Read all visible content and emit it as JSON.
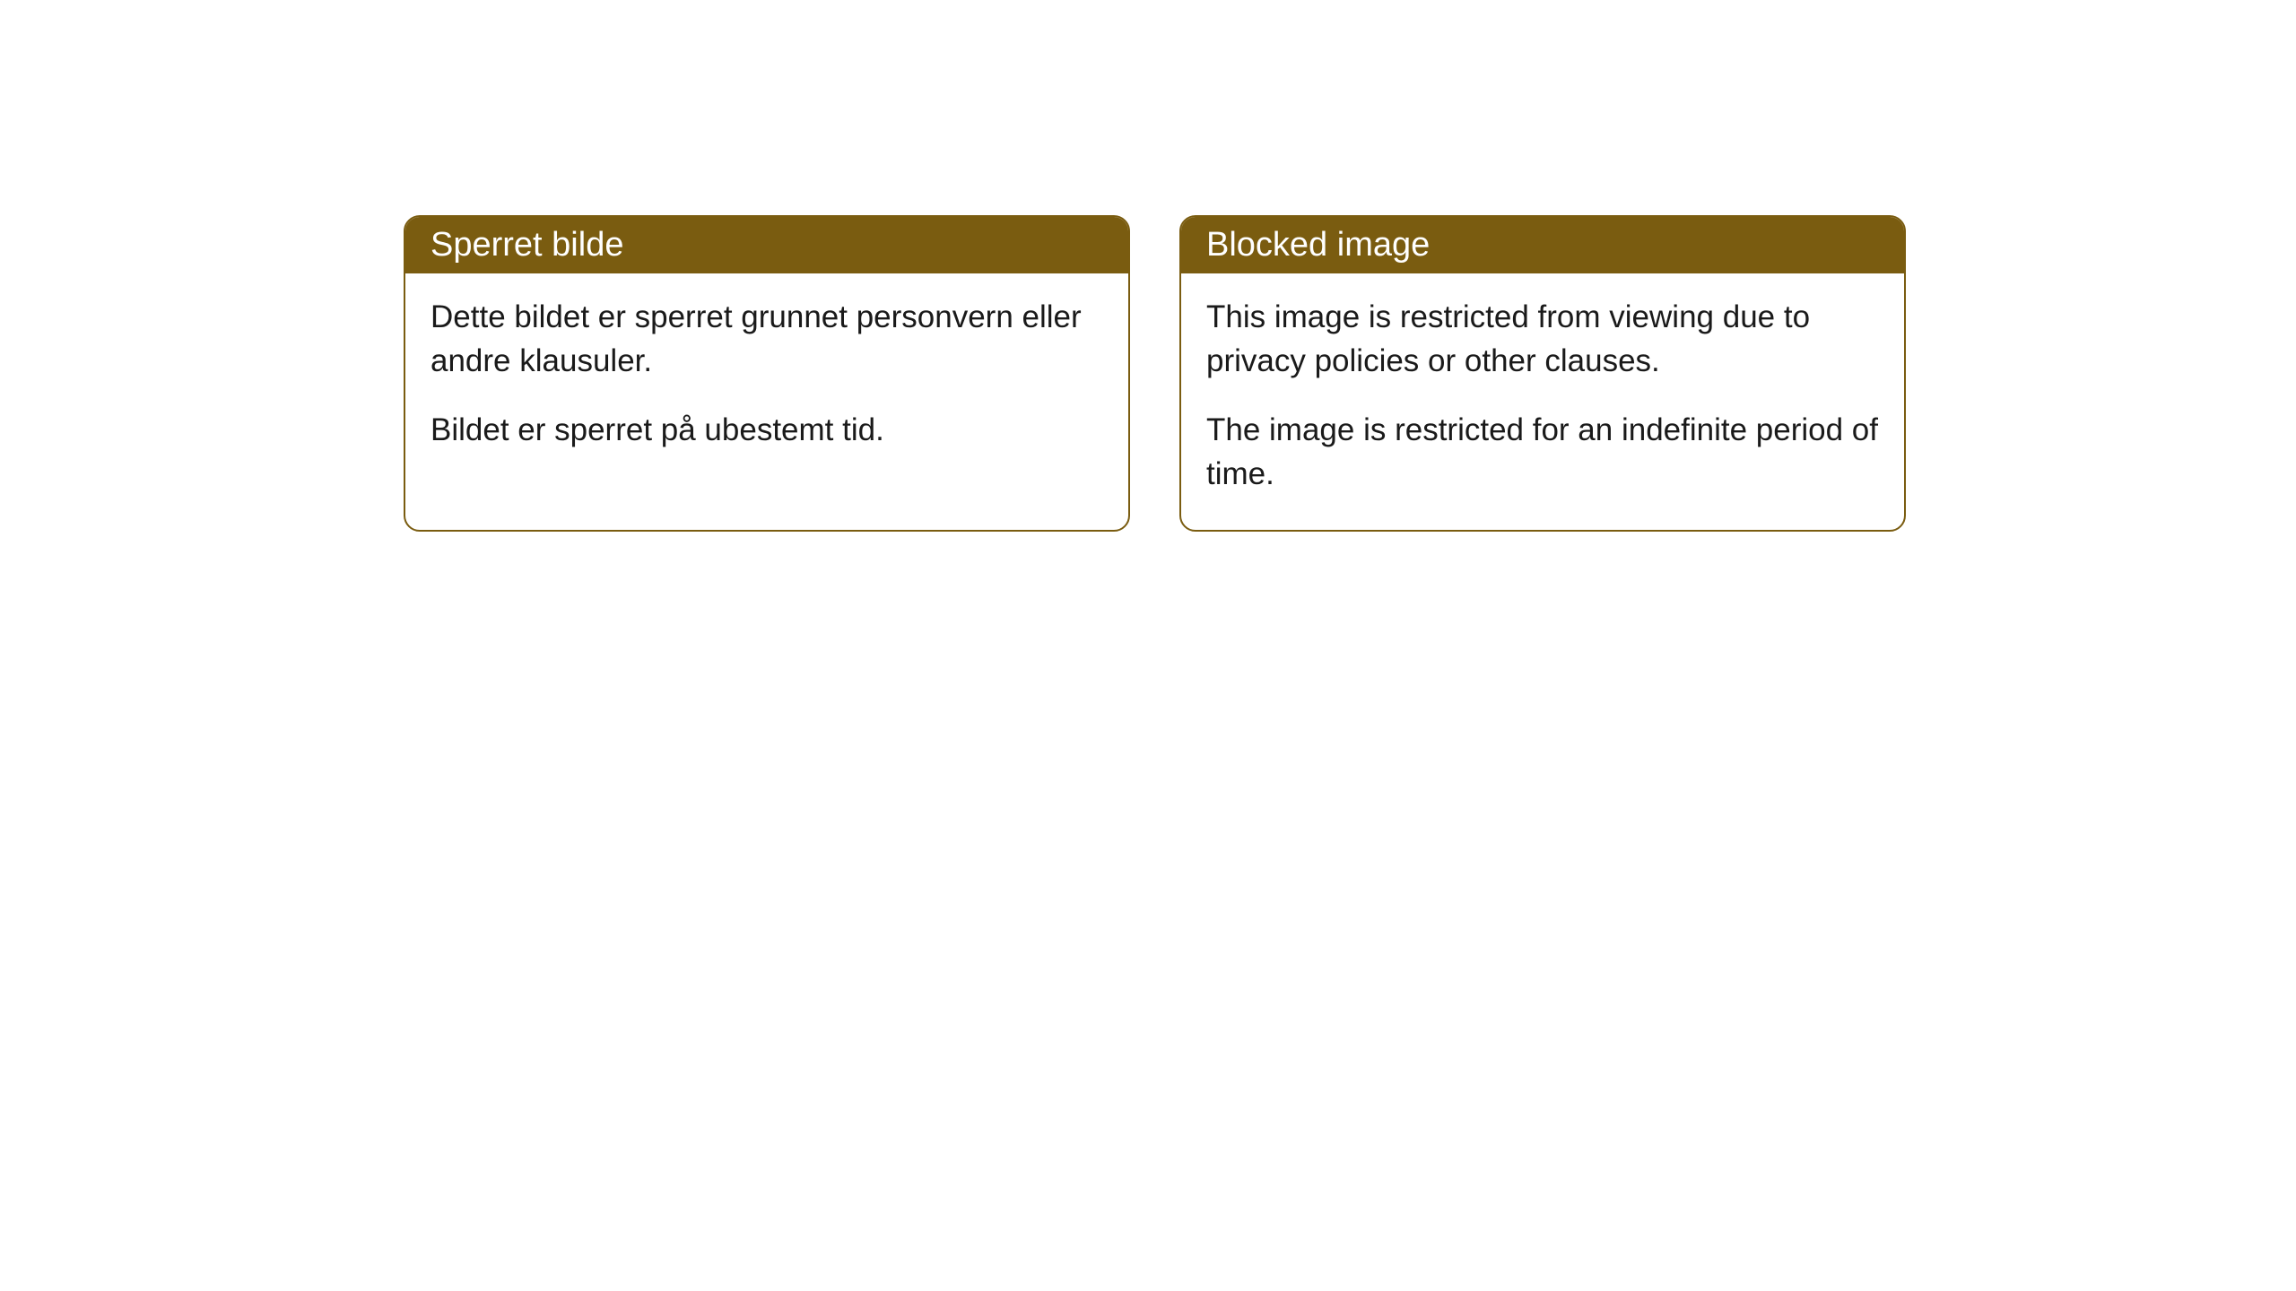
{
  "cards": [
    {
      "title": "Sperret bilde",
      "paragraph1": "Dette bildet er sperret grunnet personvern eller andre klausuler.",
      "paragraph2": "Bildet er sperret på ubestemt tid."
    },
    {
      "title": "Blocked image",
      "paragraph1": "This image is restricted from viewing due to privacy policies or other clauses.",
      "paragraph2": "The image is restricted for an indefinite period of time."
    }
  ],
  "styling": {
    "header_background_color": "#7a5c10",
    "header_text_color": "#ffffff",
    "border_color": "#7a5c10",
    "border_radius": "18px",
    "card_background_color": "#ffffff",
    "body_text_color": "#1a1a1a",
    "title_fontsize": 38,
    "body_fontsize": 35,
    "page_background_color": "#ffffff"
  }
}
